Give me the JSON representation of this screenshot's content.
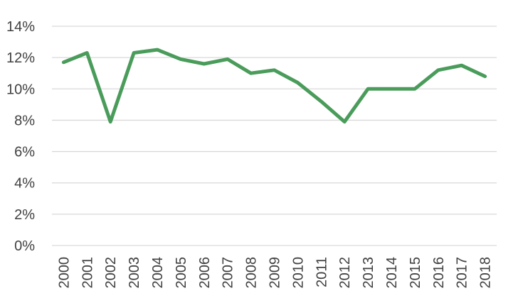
{
  "chart_data": {
    "type": "line",
    "title": "",
    "xlabel": "",
    "ylabel": "",
    "x": [
      "2000",
      "2001",
      "2002",
      "2003",
      "2004",
      "2005",
      "2006",
      "2007",
      "2008",
      "2009",
      "2010",
      "2011",
      "2012",
      "2013",
      "2014",
      "2015",
      "2016",
      "2017",
      "2018"
    ],
    "series": [
      {
        "values": [
          11.7,
          12.3,
          7.9,
          12.3,
          12.5,
          11.9,
          11.6,
          11.9,
          11.0,
          11.2,
          10.4,
          9.2,
          7.9,
          10.0,
          10.0,
          10.0,
          11.2,
          11.5,
          10.8
        ],
        "color": "#4a9c5b"
      }
    ],
    "ylim": [
      0,
      14
    ],
    "yticks": [
      "0%",
      "2%",
      "4%",
      "6%",
      "8%",
      "10%",
      "12%",
      "14%"
    ],
    "grid": true,
    "legend": "none"
  }
}
